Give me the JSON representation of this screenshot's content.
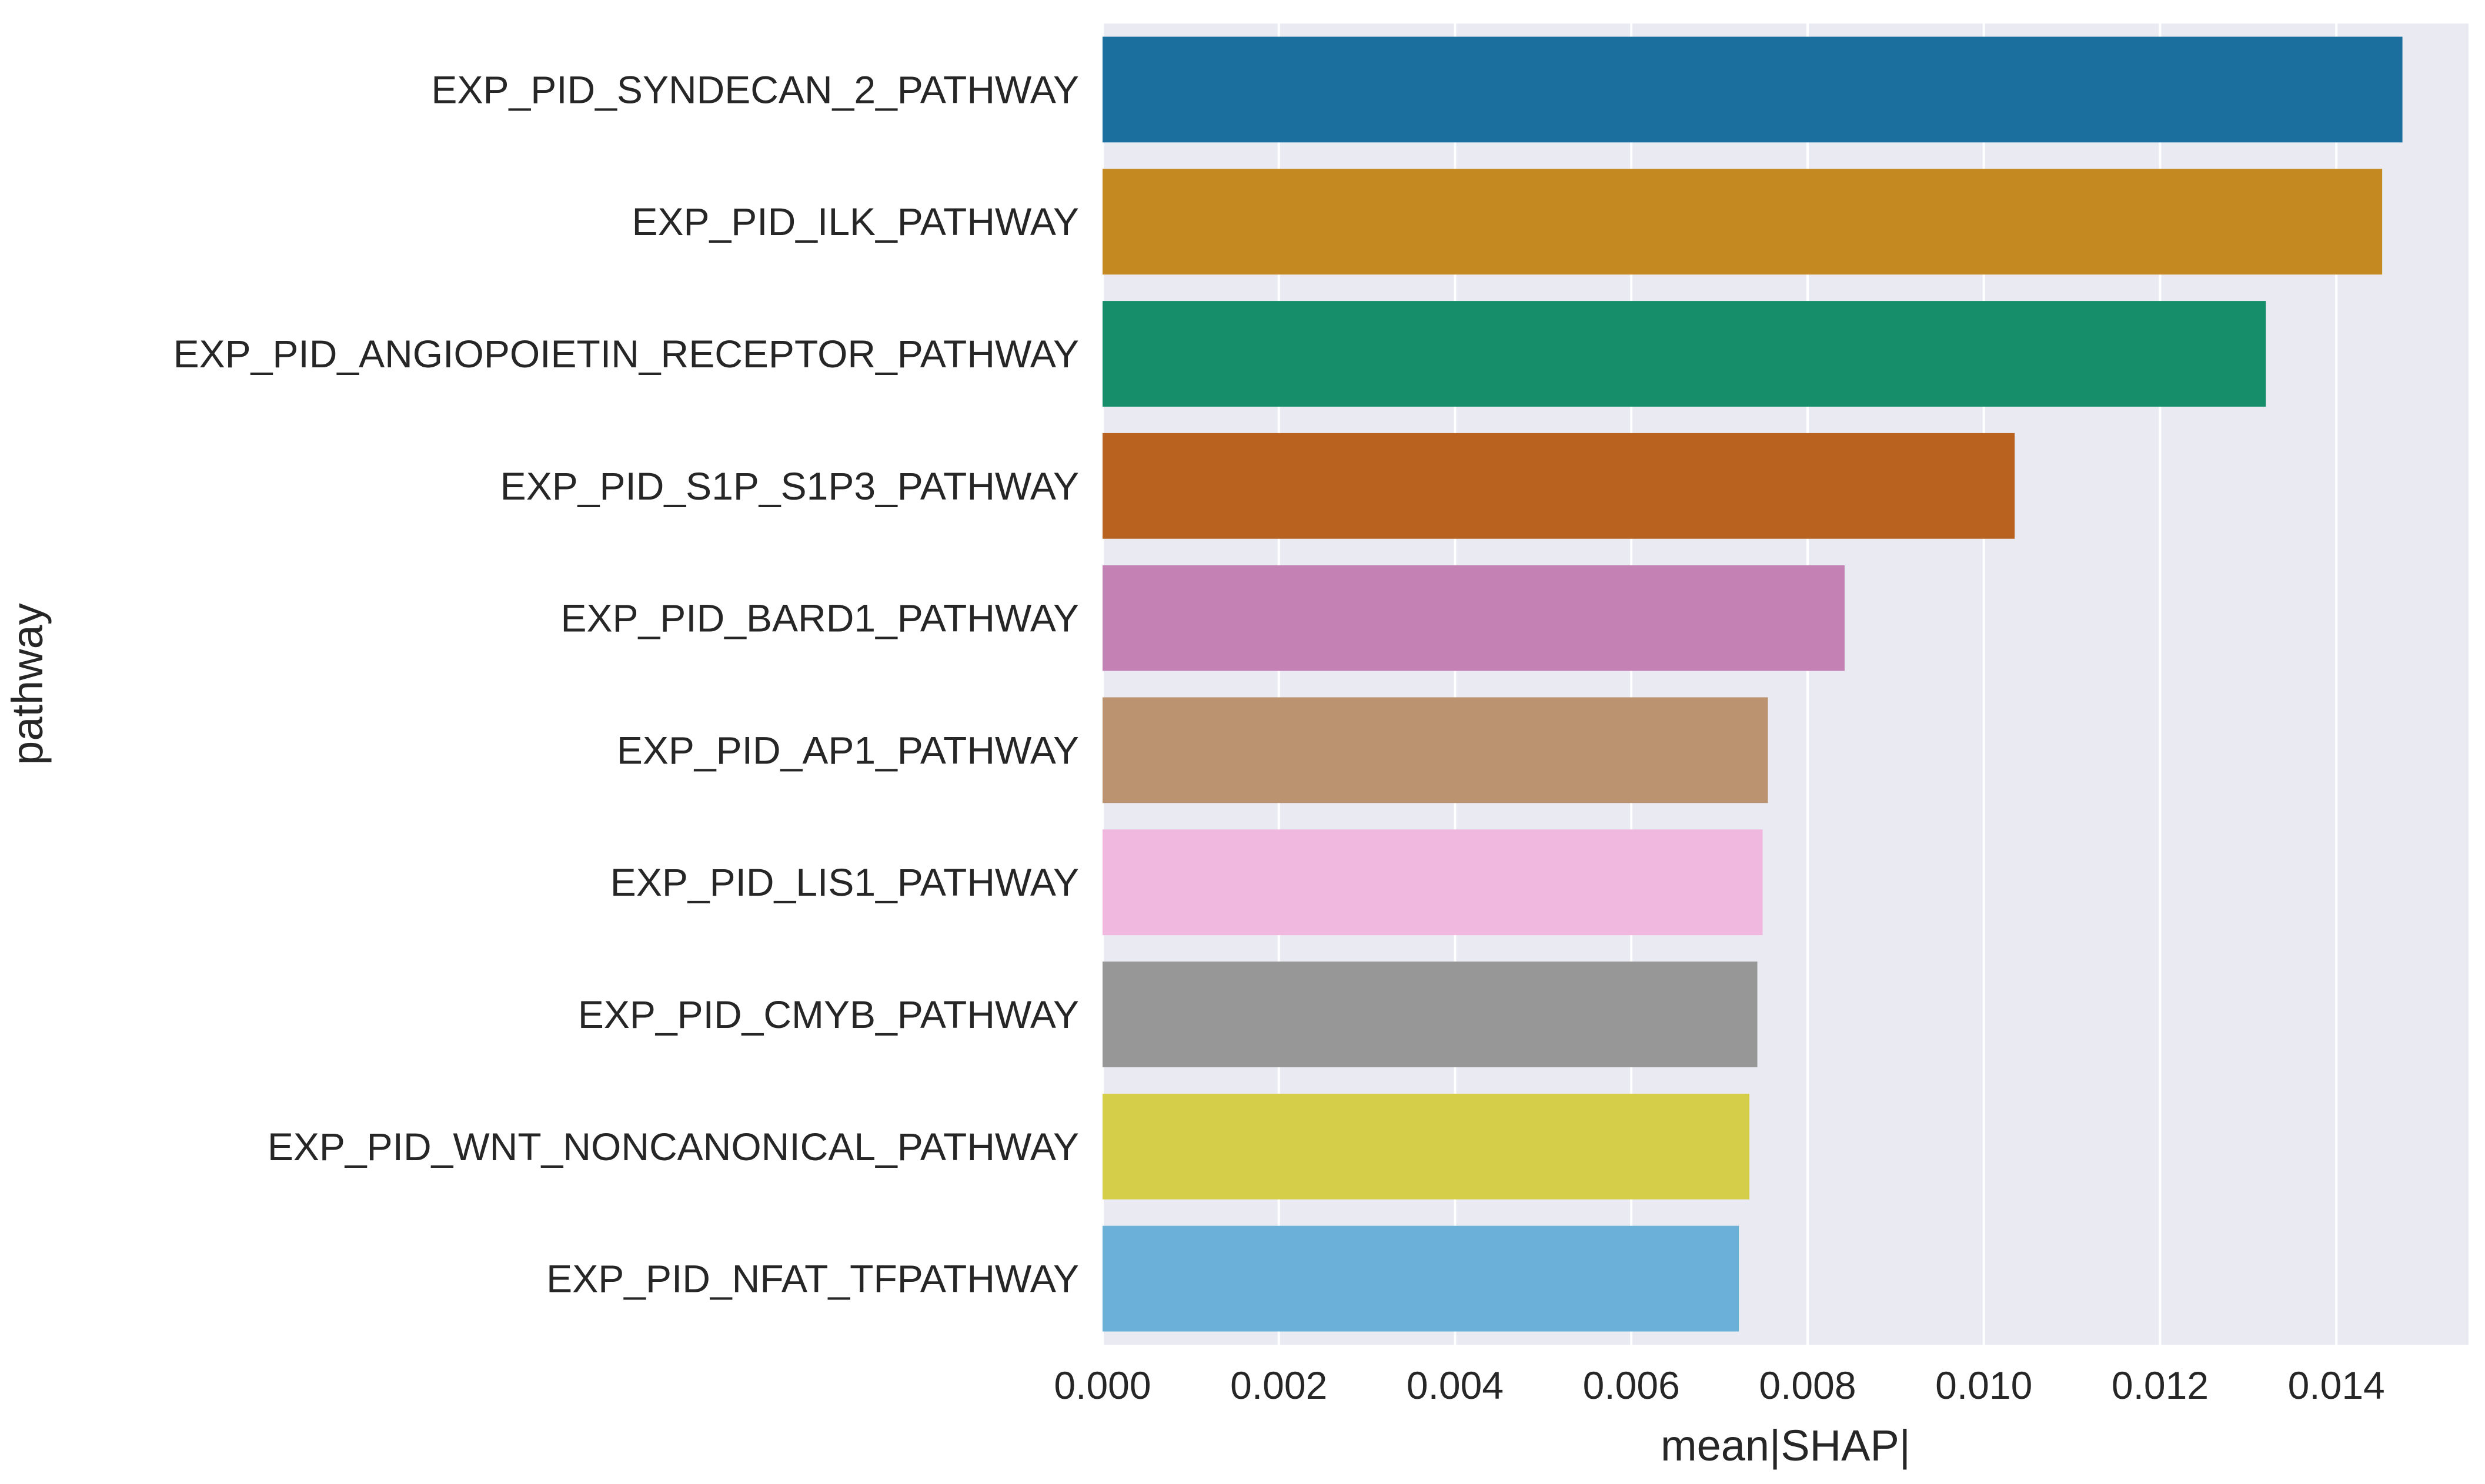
{
  "chart_data": {
    "type": "bar",
    "orientation": "horizontal",
    "title": "",
    "xlabel": "mean|SHAP|",
    "ylabel": "pathway",
    "xlim": [
      0,
      0.0155
    ],
    "xticks": [
      "0.000",
      "0.002",
      "0.004",
      "0.006",
      "0.008",
      "0.010",
      "0.012",
      "0.014"
    ],
    "xtick_values": [
      0,
      0.002,
      0.004,
      0.006,
      0.008,
      0.01,
      0.012,
      0.014
    ],
    "grid": true,
    "background": "#eaeaf2",
    "categories": [
      "EXP_PID_SYNDECAN_2_PATHWAY",
      "EXP_PID_ILK_PATHWAY",
      "EXP_PID_ANGIOPOIETIN_RECEPTOR_PATHWAY",
      "EXP_PID_S1P_S1P3_PATHWAY",
      "EXP_PID_BARD1_PATHWAY",
      "EXP_PID_AP1_PATHWAY",
      "EXP_PID_LIS1_PATHWAY",
      "EXP_PID_CMYB_PATHWAY",
      "EXP_PID_WNT_NONCANONICAL_PATHWAY",
      "EXP_PID_NFAT_TFPATHWAY"
    ],
    "values": [
      0.01475,
      0.01452,
      0.0132,
      0.01035,
      0.00842,
      0.00755,
      0.00749,
      0.00743,
      0.00734,
      0.00722
    ],
    "colors": [
      "#1b6f9e",
      "#c48920",
      "#178e6a",
      "#b9611f",
      "#c381b4",
      "#bc9370",
      "#f0b8de",
      "#979797",
      "#d5ce48",
      "#6ab0d8"
    ]
  }
}
